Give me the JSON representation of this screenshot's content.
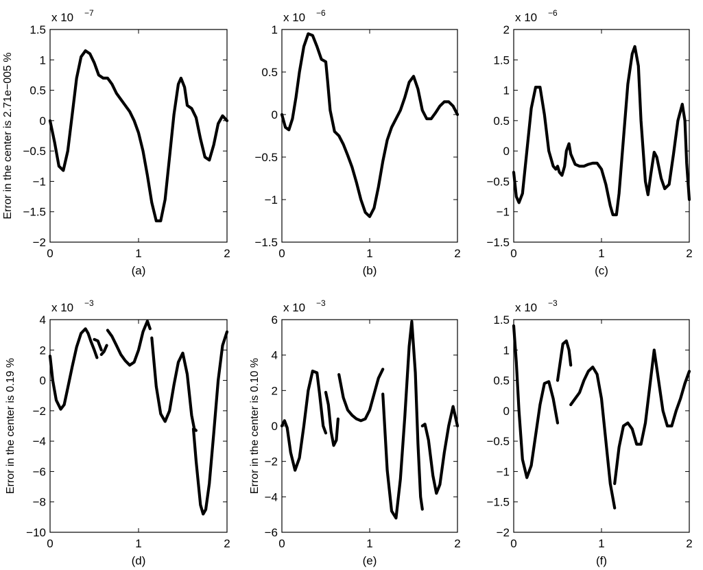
{
  "chart_data": [
    {
      "type": "line",
      "label": "(a)",
      "ylabel": "Error in the center is 2.71e−005 %",
      "multiplier": "x 10",
      "exponent": "−7",
      "xlim": [
        0,
        2
      ],
      "ylim": [
        -2,
        1.5
      ],
      "xticks": [
        "0",
        "1",
        "2"
      ],
      "yticks": [
        "−2",
        "−1.5",
        "−1",
        "−0.5",
        "0",
        "0.5",
        "1",
        "1.5"
      ],
      "yticks_values": [
        -2,
        -1.5,
        -1,
        -0.5,
        0,
        0.5,
        1,
        1.5
      ],
      "series": [
        {
          "x": [
            0,
            0.05,
            0.1,
            0.15,
            0.2,
            0.25,
            0.3,
            0.35,
            0.4,
            0.45,
            0.5,
            0.55,
            0.6,
            0.65,
            0.7,
            0.75,
            0.8,
            0.85,
            0.9,
            0.95,
            1.0,
            1.05,
            1.1,
            1.15,
            1.2,
            1.25,
            1.3,
            1.35,
            1.4,
            1.45,
            1.48,
            1.52,
            1.55,
            1.6,
            1.65,
            1.7,
            1.75,
            1.8,
            1.85,
            1.9,
            1.95,
            2.0
          ],
          "y": [
            0,
            -0.35,
            -0.75,
            -0.82,
            -0.5,
            0.1,
            0.7,
            1.05,
            1.15,
            1.1,
            0.95,
            0.75,
            0.7,
            0.7,
            0.6,
            0.45,
            0.35,
            0.25,
            0.15,
            0.0,
            -0.2,
            -0.5,
            -0.9,
            -1.35,
            -1.65,
            -1.65,
            -1.3,
            -0.6,
            0.1,
            0.6,
            0.7,
            0.55,
            0.25,
            0.2,
            0.05,
            -0.3,
            -0.6,
            -0.65,
            -0.4,
            -0.05,
            0.08,
            0.0
          ]
        }
      ]
    },
    {
      "type": "line",
      "label": "(b)",
      "ylabel": "",
      "multiplier": "x 10",
      "exponent": "−6",
      "xlim": [
        0,
        2
      ],
      "ylim": [
        -1.5,
        1
      ],
      "xticks": [
        "0",
        "1",
        "2"
      ],
      "yticks": [
        "−1.5",
        "−1",
        "−0.5",
        "0",
        "0.5",
        "1"
      ],
      "yticks_values": [
        -1.5,
        -1,
        -0.5,
        0,
        0.5,
        1
      ],
      "series": [
        {
          "x": [
            0,
            0.04,
            0.08,
            0.12,
            0.16,
            0.2,
            0.25,
            0.3,
            0.35,
            0.4,
            0.45,
            0.5,
            0.52,
            0.55,
            0.6,
            0.65,
            0.7,
            0.75,
            0.8,
            0.85,
            0.9,
            0.95,
            1.0,
            1.05,
            1.1,
            1.15,
            1.2,
            1.25,
            1.3,
            1.35,
            1.4,
            1.45,
            1.5,
            1.55,
            1.6,
            1.65,
            1.7,
            1.75,
            1.8,
            1.85,
            1.9,
            1.95,
            2.0
          ],
          "y": [
            0,
            -0.15,
            -0.18,
            -0.05,
            0.2,
            0.5,
            0.8,
            0.95,
            0.93,
            0.8,
            0.65,
            0.62,
            0.4,
            0.05,
            -0.2,
            -0.25,
            -0.35,
            -0.48,
            -0.62,
            -0.8,
            -1.0,
            -1.15,
            -1.2,
            -1.1,
            -0.85,
            -0.55,
            -0.3,
            -0.15,
            -0.05,
            0.05,
            0.2,
            0.38,
            0.45,
            0.3,
            0.05,
            -0.05,
            -0.05,
            0.02,
            0.1,
            0.15,
            0.15,
            0.1,
            0.0
          ]
        }
      ]
    },
    {
      "type": "line",
      "label": "(c)",
      "ylabel": "",
      "multiplier": "x 10",
      "exponent": "−6",
      "xlim": [
        0,
        2
      ],
      "ylim": [
        -1.5,
        2
      ],
      "xticks": [
        "0",
        "1",
        "2"
      ],
      "yticks": [
        "−1.5",
        "−1",
        "−0.5",
        "0",
        "0.5",
        "1",
        "1.5",
        "2"
      ],
      "yticks_values": [
        -1.5,
        -1,
        -0.5,
        0,
        0.5,
        1,
        1.5,
        2
      ],
      "series": [
        {
          "x": [
            0,
            0.03,
            0.06,
            0.1,
            0.15,
            0.2,
            0.25,
            0.3,
            0.35,
            0.4,
            0.45,
            0.48,
            0.5,
            0.52,
            0.55,
            0.58,
            0.6,
            0.63,
            0.65,
            0.7,
            0.75,
            0.8,
            0.85,
            0.9,
            0.95,
            1.0,
            1.05,
            1.1,
            1.13,
            1.17,
            1.2,
            1.25,
            1.3,
            1.35,
            1.38,
            1.42,
            1.45,
            1.5,
            1.53,
            1.56,
            1.6,
            1.63,
            1.68,
            1.72,
            1.77,
            1.82,
            1.87,
            1.92,
            1.95,
            1.97,
            2.0
          ],
          "y": [
            -0.35,
            -0.75,
            -0.85,
            -0.7,
            0.0,
            0.7,
            1.05,
            1.05,
            0.6,
            0.0,
            -0.25,
            -0.3,
            -0.25,
            -0.35,
            -0.4,
            -0.25,
            0.0,
            0.12,
            -0.05,
            -0.22,
            -0.25,
            -0.25,
            -0.22,
            -0.2,
            -0.2,
            -0.3,
            -0.55,
            -0.9,
            -1.05,
            -1.05,
            -0.7,
            0.2,
            1.1,
            1.6,
            1.72,
            1.4,
            0.5,
            -0.5,
            -0.72,
            -0.4,
            -0.02,
            -0.1,
            -0.45,
            -0.62,
            -0.55,
            -0.05,
            0.5,
            0.77,
            0.5,
            -0.2,
            -0.8
          ]
        }
      ]
    },
    {
      "type": "line",
      "label": "(d)",
      "ylabel": "Error in the center is 0.19 %",
      "multiplier": "x 10",
      "exponent": "−3",
      "xlim": [
        0,
        2
      ],
      "ylim": [
        -10,
        4
      ],
      "xticks": [
        "0",
        "1",
        "2"
      ],
      "yticks": [
        "−10",
        "−8",
        "−6",
        "−4",
        "−2",
        "0",
        "2",
        "4"
      ],
      "yticks_values": [
        -10,
        -8,
        -6,
        -4,
        -2,
        0,
        2,
        4
      ],
      "series": [
        {
          "x": [
            0,
            0.03,
            0.07,
            0.12,
            0.16,
            0.2,
            0.25,
            0.3,
            0.35,
            0.4,
            0.43,
            0.46,
            0.5,
            0.53
          ],
          "y": [
            1.6,
            0.0,
            -1.3,
            -1.9,
            -1.6,
            -0.5,
            0.9,
            2.2,
            3.1,
            3.4,
            3.1,
            2.6,
            2.0,
            1.5
          ]
        },
        {
          "x": [
            0.5,
            0.54,
            0.58
          ],
          "y": [
            2.7,
            2.6,
            2.0
          ]
        },
        {
          "x": [
            0.58,
            0.61,
            0.64
          ],
          "y": [
            1.7,
            1.9,
            2.3
          ]
        },
        {
          "x": [
            0.65,
            0.7,
            0.75,
            0.8,
            0.85,
            0.9,
            0.95,
            1.0,
            1.05,
            1.1,
            1.13
          ],
          "y": [
            3.3,
            2.9,
            2.3,
            1.7,
            1.3,
            1.0,
            1.2,
            2.0,
            3.2,
            3.9,
            3.4
          ]
        },
        {
          "x": [
            1.15,
            1.2,
            1.25,
            1.3,
            1.35,
            1.4,
            1.45,
            1.5,
            1.55,
            1.6,
            1.63,
            1.65
          ],
          "y": [
            2.8,
            -0.4,
            -2.2,
            -2.7,
            -2.0,
            -0.3,
            1.2,
            1.8,
            0.4,
            -2.3,
            -3.2,
            -3.3
          ]
        },
        {
          "x": [
            1.62,
            1.65,
            1.7,
            1.73,
            1.76,
            1.8,
            1.85,
            1.9,
            1.95,
            2.0
          ],
          "y": [
            -3.2,
            -5.3,
            -8.2,
            -8.8,
            -8.5,
            -6.8,
            -3.5,
            0.0,
            2.3,
            3.2
          ]
        }
      ]
    },
    {
      "type": "line",
      "label": "(e)",
      "ylabel": "Error in the center is 0.10 %",
      "multiplier": "x 10",
      "exponent": "−3",
      "xlim": [
        0,
        2
      ],
      "ylim": [
        -6,
        6
      ],
      "xticks": [
        "0",
        "1",
        "2"
      ],
      "yticks": [
        "−6",
        "−4",
        "−2",
        "0",
        "2",
        "4",
        "6"
      ],
      "yticks_values": [
        -6,
        -4,
        -2,
        0,
        2,
        4,
        6
      ],
      "series": [
        {
          "x": [
            0,
            0.03,
            0.06,
            0.1,
            0.15,
            0.2,
            0.25,
            0.3,
            0.35,
            0.4,
            0.43,
            0.47,
            0.5
          ],
          "y": [
            0.0,
            0.3,
            -0.1,
            -1.5,
            -2.5,
            -1.8,
            0.0,
            2.0,
            3.1,
            3.0,
            1.8,
            0.0,
            -0.4
          ]
        },
        {
          "x": [
            0.5,
            0.53,
            0.56,
            0.59,
            0.62,
            0.64
          ],
          "y": [
            1.9,
            1.2,
            -0.3,
            -1.1,
            -0.8,
            0.4
          ]
        },
        {
          "x": [
            0.65,
            0.7,
            0.75,
            0.8,
            0.85,
            0.9,
            0.95,
            1.0,
            1.05,
            1.1,
            1.15
          ],
          "y": [
            2.9,
            1.6,
            0.9,
            0.6,
            0.4,
            0.3,
            0.4,
            0.9,
            1.8,
            2.7,
            3.2
          ]
        },
        {
          "x": [
            1.15,
            1.2,
            1.25,
            1.3,
            1.35,
            1.4,
            1.45,
            1.48,
            1.52,
            1.55,
            1.58,
            1.6
          ],
          "y": [
            1.8,
            -2.5,
            -4.8,
            -5.2,
            -3.0,
            0.5,
            4.5,
            5.9,
            3.0,
            -1.0,
            -4.0,
            -4.7
          ]
        },
        {
          "x": [
            1.6,
            1.63,
            1.67,
            1.72,
            1.76,
            1.8,
            1.85,
            1.9,
            1.95,
            2.0
          ],
          "y": [
            0.0,
            0.1,
            -0.8,
            -2.8,
            -3.8,
            -3.3,
            -1.5,
            0.0,
            1.1,
            0.0
          ]
        }
      ]
    },
    {
      "type": "line",
      "label": "(f)",
      "ylabel": "",
      "multiplier": "x 10",
      "exponent": "−3",
      "xlim": [
        0,
        2
      ],
      "ylim": [
        -2,
        1.5
      ],
      "xticks": [
        "0",
        "1",
        "2"
      ],
      "yticks": [
        "−2",
        "−1.5",
        "−1",
        "−0.5",
        "0",
        "0.5",
        "1",
        "1.5"
      ],
      "yticks_values": [
        -2,
        -1.5,
        -1,
        -0.5,
        0,
        0.5,
        1,
        1.5
      ],
      "series": [
        {
          "x": [
            0,
            0.03,
            0.06,
            0.1,
            0.15,
            0.2,
            0.25,
            0.3,
            0.35,
            0.4,
            0.45,
            0.5
          ],
          "y": [
            1.4,
            0.8,
            0.0,
            -0.8,
            -1.1,
            -0.9,
            -0.4,
            0.1,
            0.45,
            0.48,
            0.2,
            -0.2
          ]
        },
        {
          "x": [
            0.5,
            0.53,
            0.56,
            0.6,
            0.63,
            0.65
          ],
          "y": [
            0.5,
            0.8,
            1.1,
            1.15,
            1.0,
            0.75
          ]
        },
        {
          "x": [
            0.65,
            0.7,
            0.75,
            0.8,
            0.85,
            0.9,
            0.95,
            1.0,
            1.05,
            1.1,
            1.15
          ],
          "y": [
            0.1,
            0.2,
            0.3,
            0.5,
            0.65,
            0.72,
            0.6,
            0.2,
            -0.5,
            -1.2,
            -1.6
          ]
        },
        {
          "x": [
            1.15,
            1.2,
            1.25,
            1.3,
            1.35,
            1.4,
            1.45,
            1.5,
            1.55,
            1.6,
            1.65,
            1.7,
            1.75,
            1.8,
            1.85,
            1.9,
            1.95,
            2.0
          ],
          "y": [
            -1.2,
            -0.6,
            -0.25,
            -0.2,
            -0.3,
            -0.55,
            -0.55,
            -0.2,
            0.4,
            1.0,
            0.5,
            0.0,
            -0.25,
            -0.25,
            0.0,
            0.2,
            0.45,
            0.65
          ]
        }
      ]
    }
  ]
}
